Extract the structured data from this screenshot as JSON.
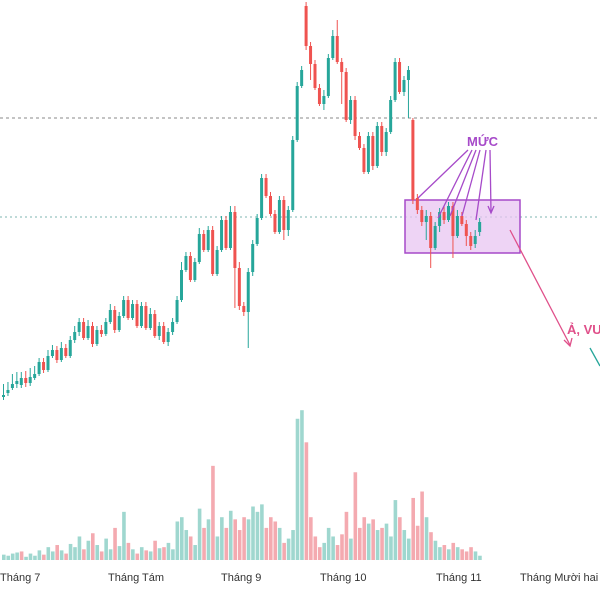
{
  "chart_data": {
    "type": "candlestick",
    "xlabels": [
      "Tháng 7",
      "Tháng Tám",
      "Tháng 9",
      "Tháng 10",
      "Tháng 11",
      "Tháng Mười hai"
    ],
    "annotations": {
      "muc_label": "MỨC",
      "callout_label": "Ả, VU"
    },
    "colors": {
      "up": "#26a69a",
      "down": "#ef5350",
      "volume_up": "#9fd7cf",
      "volume_down": "#f4aab0",
      "annotation": "#a64ac9",
      "box_fill": "#e8c6f2",
      "arrow": "#e0508a"
    },
    "candles": [
      [
        397,
        395,
        384,
        400,
        "u"
      ],
      [
        393,
        390,
        382,
        396,
        "u"
      ],
      [
        388,
        384,
        374,
        390,
        "u"
      ],
      [
        384,
        381,
        372,
        388,
        "u"
      ],
      [
        385,
        378,
        372,
        388,
        "u"
      ],
      [
        378,
        383,
        371,
        387,
        "d"
      ],
      [
        383,
        377,
        368,
        386,
        "u"
      ],
      [
        378,
        374,
        366,
        380,
        "u"
      ],
      [
        374,
        362,
        358,
        376,
        "u"
      ],
      [
        362,
        370,
        358,
        373,
        "d"
      ],
      [
        370,
        356,
        350,
        372,
        "u"
      ],
      [
        356,
        350,
        345,
        358,
        "u"
      ],
      [
        350,
        360,
        346,
        363,
        "d"
      ],
      [
        360,
        348,
        342,
        362,
        "u"
      ],
      [
        348,
        356,
        344,
        358,
        "d"
      ],
      [
        356,
        340,
        336,
        358,
        "u"
      ],
      [
        340,
        332,
        326,
        343,
        "u"
      ],
      [
        332,
        322,
        318,
        336,
        "u"
      ],
      [
        322,
        338,
        318,
        340,
        "d"
      ],
      [
        338,
        326,
        320,
        340,
        "u"
      ],
      [
        326,
        344,
        322,
        347,
        "d"
      ],
      [
        344,
        330,
        326,
        346,
        "u"
      ],
      [
        330,
        334,
        325,
        337,
        "d"
      ],
      [
        334,
        322,
        318,
        336,
        "u"
      ],
      [
        322,
        310,
        304,
        324,
        "u"
      ],
      [
        310,
        330,
        306,
        333,
        "d"
      ],
      [
        330,
        316,
        312,
        332,
        "u"
      ],
      [
        316,
        300,
        296,
        318,
        "u"
      ],
      [
        300,
        318,
        296,
        320,
        "d"
      ],
      [
        318,
        304,
        300,
        320,
        "u"
      ],
      [
        304,
        326,
        300,
        328,
        "d"
      ],
      [
        326,
        306,
        302,
        328,
        "u"
      ],
      [
        306,
        328,
        302,
        330,
        "d"
      ],
      [
        328,
        314,
        308,
        330,
        "u"
      ],
      [
        314,
        336,
        310,
        338,
        "d"
      ],
      [
        336,
        326,
        322,
        340,
        "u"
      ],
      [
        326,
        342,
        322,
        344,
        "d"
      ],
      [
        342,
        332,
        328,
        346,
        "u"
      ],
      [
        332,
        322,
        318,
        335,
        "u"
      ],
      [
        322,
        300,
        296,
        324,
        "u"
      ],
      [
        300,
        270,
        262,
        302,
        "u"
      ],
      [
        270,
        256,
        252,
        272,
        "u"
      ],
      [
        256,
        280,
        252,
        282,
        "d"
      ],
      [
        280,
        262,
        258,
        282,
        "u"
      ],
      [
        262,
        234,
        228,
        264,
        "u"
      ],
      [
        234,
        250,
        230,
        252,
        "d"
      ],
      [
        250,
        230,
        226,
        252,
        "u"
      ],
      [
        230,
        274,
        226,
        276,
        "d"
      ],
      [
        274,
        250,
        246,
        276,
        "u"
      ],
      [
        250,
        220,
        216,
        252,
        "u"
      ],
      [
        220,
        248,
        216,
        250,
        "d"
      ],
      [
        248,
        212,
        206,
        250,
        "u"
      ],
      [
        212,
        268,
        206,
        308,
        "d"
      ],
      [
        268,
        306,
        262,
        310,
        "d"
      ],
      [
        306,
        312,
        302,
        316,
        "d"
      ],
      [
        312,
        272,
        268,
        348,
        "u"
      ],
      [
        272,
        244,
        240,
        276,
        "u"
      ],
      [
        244,
        218,
        214,
        246,
        "u"
      ],
      [
        218,
        178,
        174,
        220,
        "u"
      ],
      [
        178,
        196,
        174,
        198,
        "d"
      ],
      [
        196,
        214,
        192,
        216,
        "d"
      ],
      [
        214,
        232,
        210,
        234,
        "d"
      ],
      [
        232,
        200,
        196,
        234,
        "u"
      ],
      [
        200,
        230,
        196,
        240,
        "d"
      ],
      [
        230,
        210,
        206,
        236,
        "u"
      ],
      [
        210,
        140,
        136,
        212,
        "u"
      ],
      [
        140,
        86,
        82,
        142,
        "u"
      ],
      [
        86,
        70,
        66,
        88,
        "u"
      ],
      [
        6,
        46,
        2,
        50,
        "d"
      ],
      [
        46,
        64,
        42,
        80,
        "d"
      ],
      [
        64,
        88,
        60,
        90,
        "d"
      ],
      [
        88,
        104,
        84,
        106,
        "d"
      ],
      [
        104,
        96,
        90,
        110,
        "u"
      ],
      [
        96,
        58,
        54,
        98,
        "u"
      ],
      [
        58,
        36,
        30,
        60,
        "u"
      ],
      [
        36,
        62,
        20,
        64,
        "d"
      ],
      [
        62,
        72,
        58,
        104,
        "d"
      ],
      [
        72,
        120,
        68,
        122,
        "d"
      ],
      [
        120,
        100,
        96,
        124,
        "u"
      ],
      [
        100,
        136,
        96,
        140,
        "d"
      ],
      [
        136,
        148,
        132,
        150,
        "d"
      ],
      [
        148,
        172,
        144,
        174,
        "d"
      ],
      [
        172,
        136,
        132,
        174,
        "u"
      ],
      [
        136,
        166,
        132,
        170,
        "d"
      ],
      [
        166,
        126,
        122,
        168,
        "u"
      ],
      [
        126,
        152,
        122,
        156,
        "d"
      ],
      [
        152,
        132,
        128,
        156,
        "u"
      ],
      [
        132,
        100,
        96,
        134,
        "u"
      ],
      [
        100,
        62,
        58,
        102,
        "u"
      ],
      [
        62,
        92,
        58,
        94,
        "d"
      ],
      [
        92,
        80,
        76,
        96,
        "u"
      ],
      [
        80,
        70,
        66,
        118,
        "u"
      ],
      [
        120,
        200,
        118,
        204,
        "d"
      ],
      [
        198,
        210,
        194,
        214,
        "d"
      ],
      [
        210,
        222,
        206,
        226,
        "d"
      ],
      [
        222,
        216,
        210,
        240,
        "u"
      ],
      [
        216,
        248,
        212,
        268,
        "d"
      ],
      [
        248,
        226,
        222,
        250,
        "u"
      ],
      [
        226,
        212,
        208,
        232,
        "u"
      ],
      [
        212,
        220,
        206,
        224,
        "d"
      ],
      [
        220,
        206,
        202,
        222,
        "u"
      ],
      [
        206,
        236,
        202,
        258,
        "d"
      ],
      [
        236,
        216,
        210,
        238,
        "u"
      ],
      [
        216,
        224,
        212,
        226,
        "d"
      ],
      [
        224,
        236,
        220,
        246,
        "d"
      ],
      [
        236,
        246,
        232,
        250,
        "d"
      ],
      [
        244,
        236,
        230,
        248,
        "u"
      ],
      [
        232,
        222,
        218,
        236,
        "u"
      ]
    ],
    "volume": [
      [
        5,
        "u"
      ],
      [
        4,
        "u"
      ],
      [
        6,
        "u"
      ],
      [
        7,
        "u"
      ],
      [
        8,
        "d"
      ],
      [
        3,
        "u"
      ],
      [
        6,
        "u"
      ],
      [
        4,
        "u"
      ],
      [
        9,
        "u"
      ],
      [
        5,
        "d"
      ],
      [
        12,
        "u"
      ],
      [
        8,
        "u"
      ],
      [
        14,
        "d"
      ],
      [
        9,
        "u"
      ],
      [
        6,
        "d"
      ],
      [
        15,
        "u"
      ],
      [
        12,
        "u"
      ],
      [
        22,
        "u"
      ],
      [
        10,
        "d"
      ],
      [
        18,
        "u"
      ],
      [
        25,
        "d"
      ],
      [
        14,
        "u"
      ],
      [
        8,
        "d"
      ],
      [
        20,
        "u"
      ],
      [
        10,
        "u"
      ],
      [
        30,
        "d"
      ],
      [
        13,
        "u"
      ],
      [
        45,
        "u"
      ],
      [
        16,
        "d"
      ],
      [
        10,
        "u"
      ],
      [
        6,
        "d"
      ],
      [
        12,
        "u"
      ],
      [
        9,
        "d"
      ],
      [
        8,
        "u"
      ],
      [
        18,
        "d"
      ],
      [
        11,
        "u"
      ],
      [
        12,
        "d"
      ],
      [
        16,
        "u"
      ],
      [
        10,
        "u"
      ],
      [
        36,
        "u"
      ],
      [
        40,
        "u"
      ],
      [
        28,
        "u"
      ],
      [
        22,
        "d"
      ],
      [
        14,
        "u"
      ],
      [
        48,
        "u"
      ],
      [
        30,
        "d"
      ],
      [
        38,
        "u"
      ],
      [
        88,
        "d"
      ],
      [
        22,
        "u"
      ],
      [
        40,
        "u"
      ],
      [
        30,
        "d"
      ],
      [
        46,
        "u"
      ],
      [
        38,
        "d"
      ],
      [
        28,
        "d"
      ],
      [
        40,
        "d"
      ],
      [
        38,
        "u"
      ],
      [
        50,
        "u"
      ],
      [
        45,
        "u"
      ],
      [
        52,
        "u"
      ],
      [
        30,
        "d"
      ],
      [
        40,
        "d"
      ],
      [
        36,
        "d"
      ],
      [
        30,
        "u"
      ],
      [
        16,
        "d"
      ],
      [
        20,
        "u"
      ],
      [
        28,
        "u"
      ],
      [
        132,
        "u"
      ],
      [
        140,
        "u"
      ],
      [
        110,
        "d"
      ],
      [
        40,
        "d"
      ],
      [
        22,
        "d"
      ],
      [
        12,
        "d"
      ],
      [
        16,
        "u"
      ],
      [
        30,
        "u"
      ],
      [
        22,
        "u"
      ],
      [
        14,
        "d"
      ],
      [
        24,
        "d"
      ],
      [
        45,
        "d"
      ],
      [
        20,
        "u"
      ],
      [
        82,
        "d"
      ],
      [
        30,
        "d"
      ],
      [
        40,
        "d"
      ],
      [
        34,
        "u"
      ],
      [
        38,
        "d"
      ],
      [
        28,
        "u"
      ],
      [
        30,
        "d"
      ],
      [
        34,
        "u"
      ],
      [
        22,
        "u"
      ],
      [
        56,
        "u"
      ],
      [
        40,
        "d"
      ],
      [
        28,
        "u"
      ],
      [
        20,
        "u"
      ],
      [
        58,
        "d"
      ],
      [
        32,
        "d"
      ],
      [
        64,
        "d"
      ],
      [
        40,
        "u"
      ],
      [
        26,
        "d"
      ],
      [
        18,
        "u"
      ],
      [
        12,
        "u"
      ],
      [
        14,
        "d"
      ],
      [
        10,
        "u"
      ],
      [
        16,
        "d"
      ],
      [
        12,
        "u"
      ],
      [
        10,
        "d"
      ],
      [
        8,
        "d"
      ],
      [
        12,
        "d"
      ],
      [
        8,
        "u"
      ],
      [
        4,
        "u"
      ]
    ]
  }
}
